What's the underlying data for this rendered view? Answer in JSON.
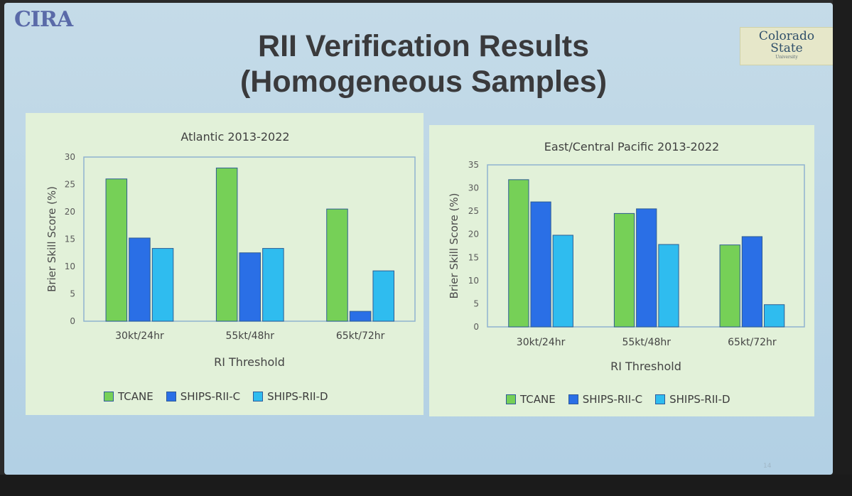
{
  "header": {
    "title_line1": "RII Verification Results",
    "title_line2": "(Homogeneous Samples)",
    "logo_left": "CIRA",
    "logo_right_line1": "Colorado",
    "logo_right_line2": "State",
    "logo_right_sub": "University"
  },
  "page_number": "14",
  "colors": {
    "TCANE": "#76d057",
    "SHIPS-RII-C": "#2a6fe6",
    "SHIPS-RII-D": "#2fbcef"
  },
  "chart_data": [
    {
      "type": "bar",
      "title": "Atlantic 2013-2022",
      "xlabel": "RI Threshold",
      "ylabel": "Brier Skill Score (%)",
      "categories": [
        "30kt/24hr",
        "55kt/48hr",
        "65kt/72hr"
      ],
      "ylim": [
        0,
        30
      ],
      "yticks": [
        "0",
        "5",
        "10",
        "15",
        "20",
        "25",
        "30"
      ],
      "series": [
        {
          "name": "TCANE",
          "values": [
            26,
            28,
            20.5
          ]
        },
        {
          "name": "SHIPS-RII-C",
          "values": [
            15.2,
            12.5,
            1.8
          ]
        },
        {
          "name": "SHIPS-RII-D",
          "values": [
            13.3,
            13.3,
            9.2
          ]
        }
      ],
      "legend_position": "bottom",
      "grid": false
    },
    {
      "type": "bar",
      "title": "East/Central Pacific 2013-2022",
      "xlabel": "RI Threshold",
      "ylabel": "Brier Skill Score (%)",
      "categories": [
        "30kt/24hr",
        "55kt/48hr",
        "65kt/72hr"
      ],
      "ylim": [
        0,
        35
      ],
      "yticks": [
        "0",
        "5",
        "10",
        "15",
        "20",
        "25",
        "30",
        "35"
      ],
      "series": [
        {
          "name": "TCANE",
          "values": [
            31.8,
            24.5,
            17.7
          ]
        },
        {
          "name": "SHIPS-RII-C",
          "values": [
            27,
            25.5,
            19.5
          ]
        },
        {
          "name": "SHIPS-RII-D",
          "values": [
            19.8,
            17.8,
            4.8
          ]
        }
      ],
      "legend_position": "bottom",
      "grid": false
    }
  ]
}
